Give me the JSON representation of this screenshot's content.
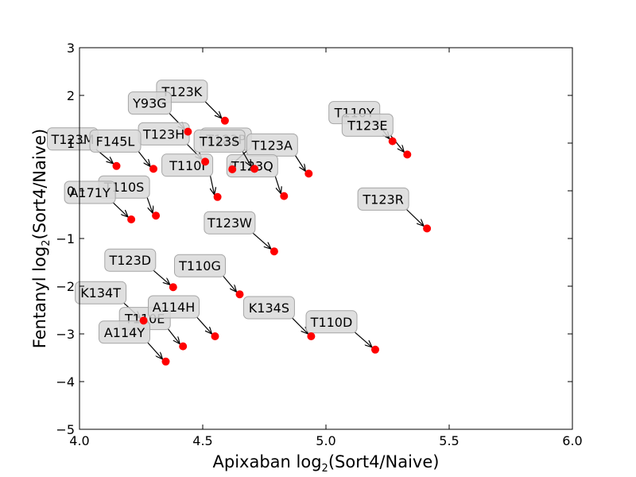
{
  "chart_data": {
    "type": "scatter",
    "xlabel": "Apixaban log",
    "xlabel_sub": "2",
    "xlabel_tail": "(Sort4/Naive)",
    "ylabel": "Fentanyl log",
    "ylabel_sub": "2",
    "ylabel_tail": "(Sort4/Naive)",
    "xlim": [
      4.0,
      6.0
    ],
    "ylim": [
      -5,
      3
    ],
    "xticks": [
      "4.0",
      "4.5",
      "5.0",
      "5.5",
      "6.0"
    ],
    "yticks": [
      "3",
      "2",
      "1",
      "0",
      "−1",
      "−2",
      "−3",
      "−4",
      "−5"
    ],
    "grid": false,
    "marker_color": "#ff0000",
    "points": [
      {
        "label": "T123K",
        "x": 4.59,
        "y": 1.47
      },
      {
        "label": "Y93G",
        "x": 4.44,
        "y": 1.24
      },
      {
        "label": "T123H",
        "x": 4.51,
        "y": 0.61
      },
      {
        "label": "T110I",
        "x": 4.56,
        "y": -0.13
      },
      {
        "label": "T123P",
        "x": 4.62,
        "y": 0.45
      },
      {
        "label": "T123A",
        "x": 4.93,
        "y": 0.36
      },
      {
        "label": "T123Q",
        "x": 4.83,
        "y": -0.11
      },
      {
        "label": "T123S",
        "x": 4.71,
        "y": 0.46
      },
      {
        "label": "T123M",
        "x": 4.15,
        "y": 0.52
      },
      {
        "label": "F145L",
        "x": 4.3,
        "y": 0.46
      },
      {
        "label": "T110S",
        "x": 4.31,
        "y": -0.52
      },
      {
        "label": "A171Y",
        "x": 4.21,
        "y": -0.6
      },
      {
        "label": "T110Y",
        "x": 5.27,
        "y": 1.04
      },
      {
        "label": "T123E",
        "x": 5.33,
        "y": 0.76
      },
      {
        "label": "T123R",
        "x": 5.41,
        "y": -0.79
      },
      {
        "label": "T123W",
        "x": 4.79,
        "y": -1.27
      },
      {
        "label": "T123D",
        "x": 4.38,
        "y": -2.02
      },
      {
        "label": "T110G",
        "x": 4.65,
        "y": -2.17
      },
      {
        "label": "K134T",
        "x": 4.26,
        "y": -2.72
      },
      {
        "label": "T110E",
        "x": 4.42,
        "y": -3.26
      },
      {
        "label": "A114H",
        "x": 4.55,
        "y": -3.05
      },
      {
        "label": "A114Y",
        "x": 4.35,
        "y": -3.58
      },
      {
        "label": "K134S",
        "x": 4.94,
        "y": -3.05
      },
      {
        "label": "T110D",
        "x": 5.2,
        "y": -3.33
      }
    ]
  }
}
